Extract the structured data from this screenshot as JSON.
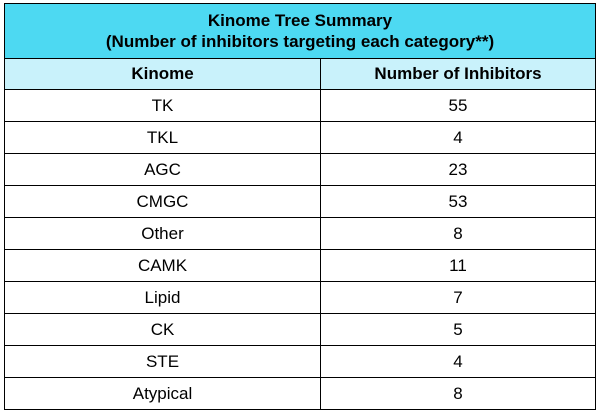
{
  "table": {
    "title_line1": "Kinome Tree Summary",
    "title_line2": "(Number of inhibitors targeting each category**)",
    "columns": [
      "Kinome",
      "Number of Inhibitors"
    ],
    "rows": [
      {
        "kinome": "TK",
        "count": "55"
      },
      {
        "kinome": "TKL",
        "count": "4"
      },
      {
        "kinome": "AGC",
        "count": "23"
      },
      {
        "kinome": "CMGC",
        "count": "53"
      },
      {
        "kinome": "Other",
        "count": "8"
      },
      {
        "kinome": "CAMK",
        "count": "11"
      },
      {
        "kinome": "Lipid",
        "count": "7"
      },
      {
        "kinome": "CK",
        "count": "5"
      },
      {
        "kinome": "STE",
        "count": "4"
      },
      {
        "kinome": "Atypical",
        "count": "8"
      }
    ]
  },
  "colors": {
    "title_bg": "#4dd9f2",
    "header_bg": "#c9f2fb"
  }
}
